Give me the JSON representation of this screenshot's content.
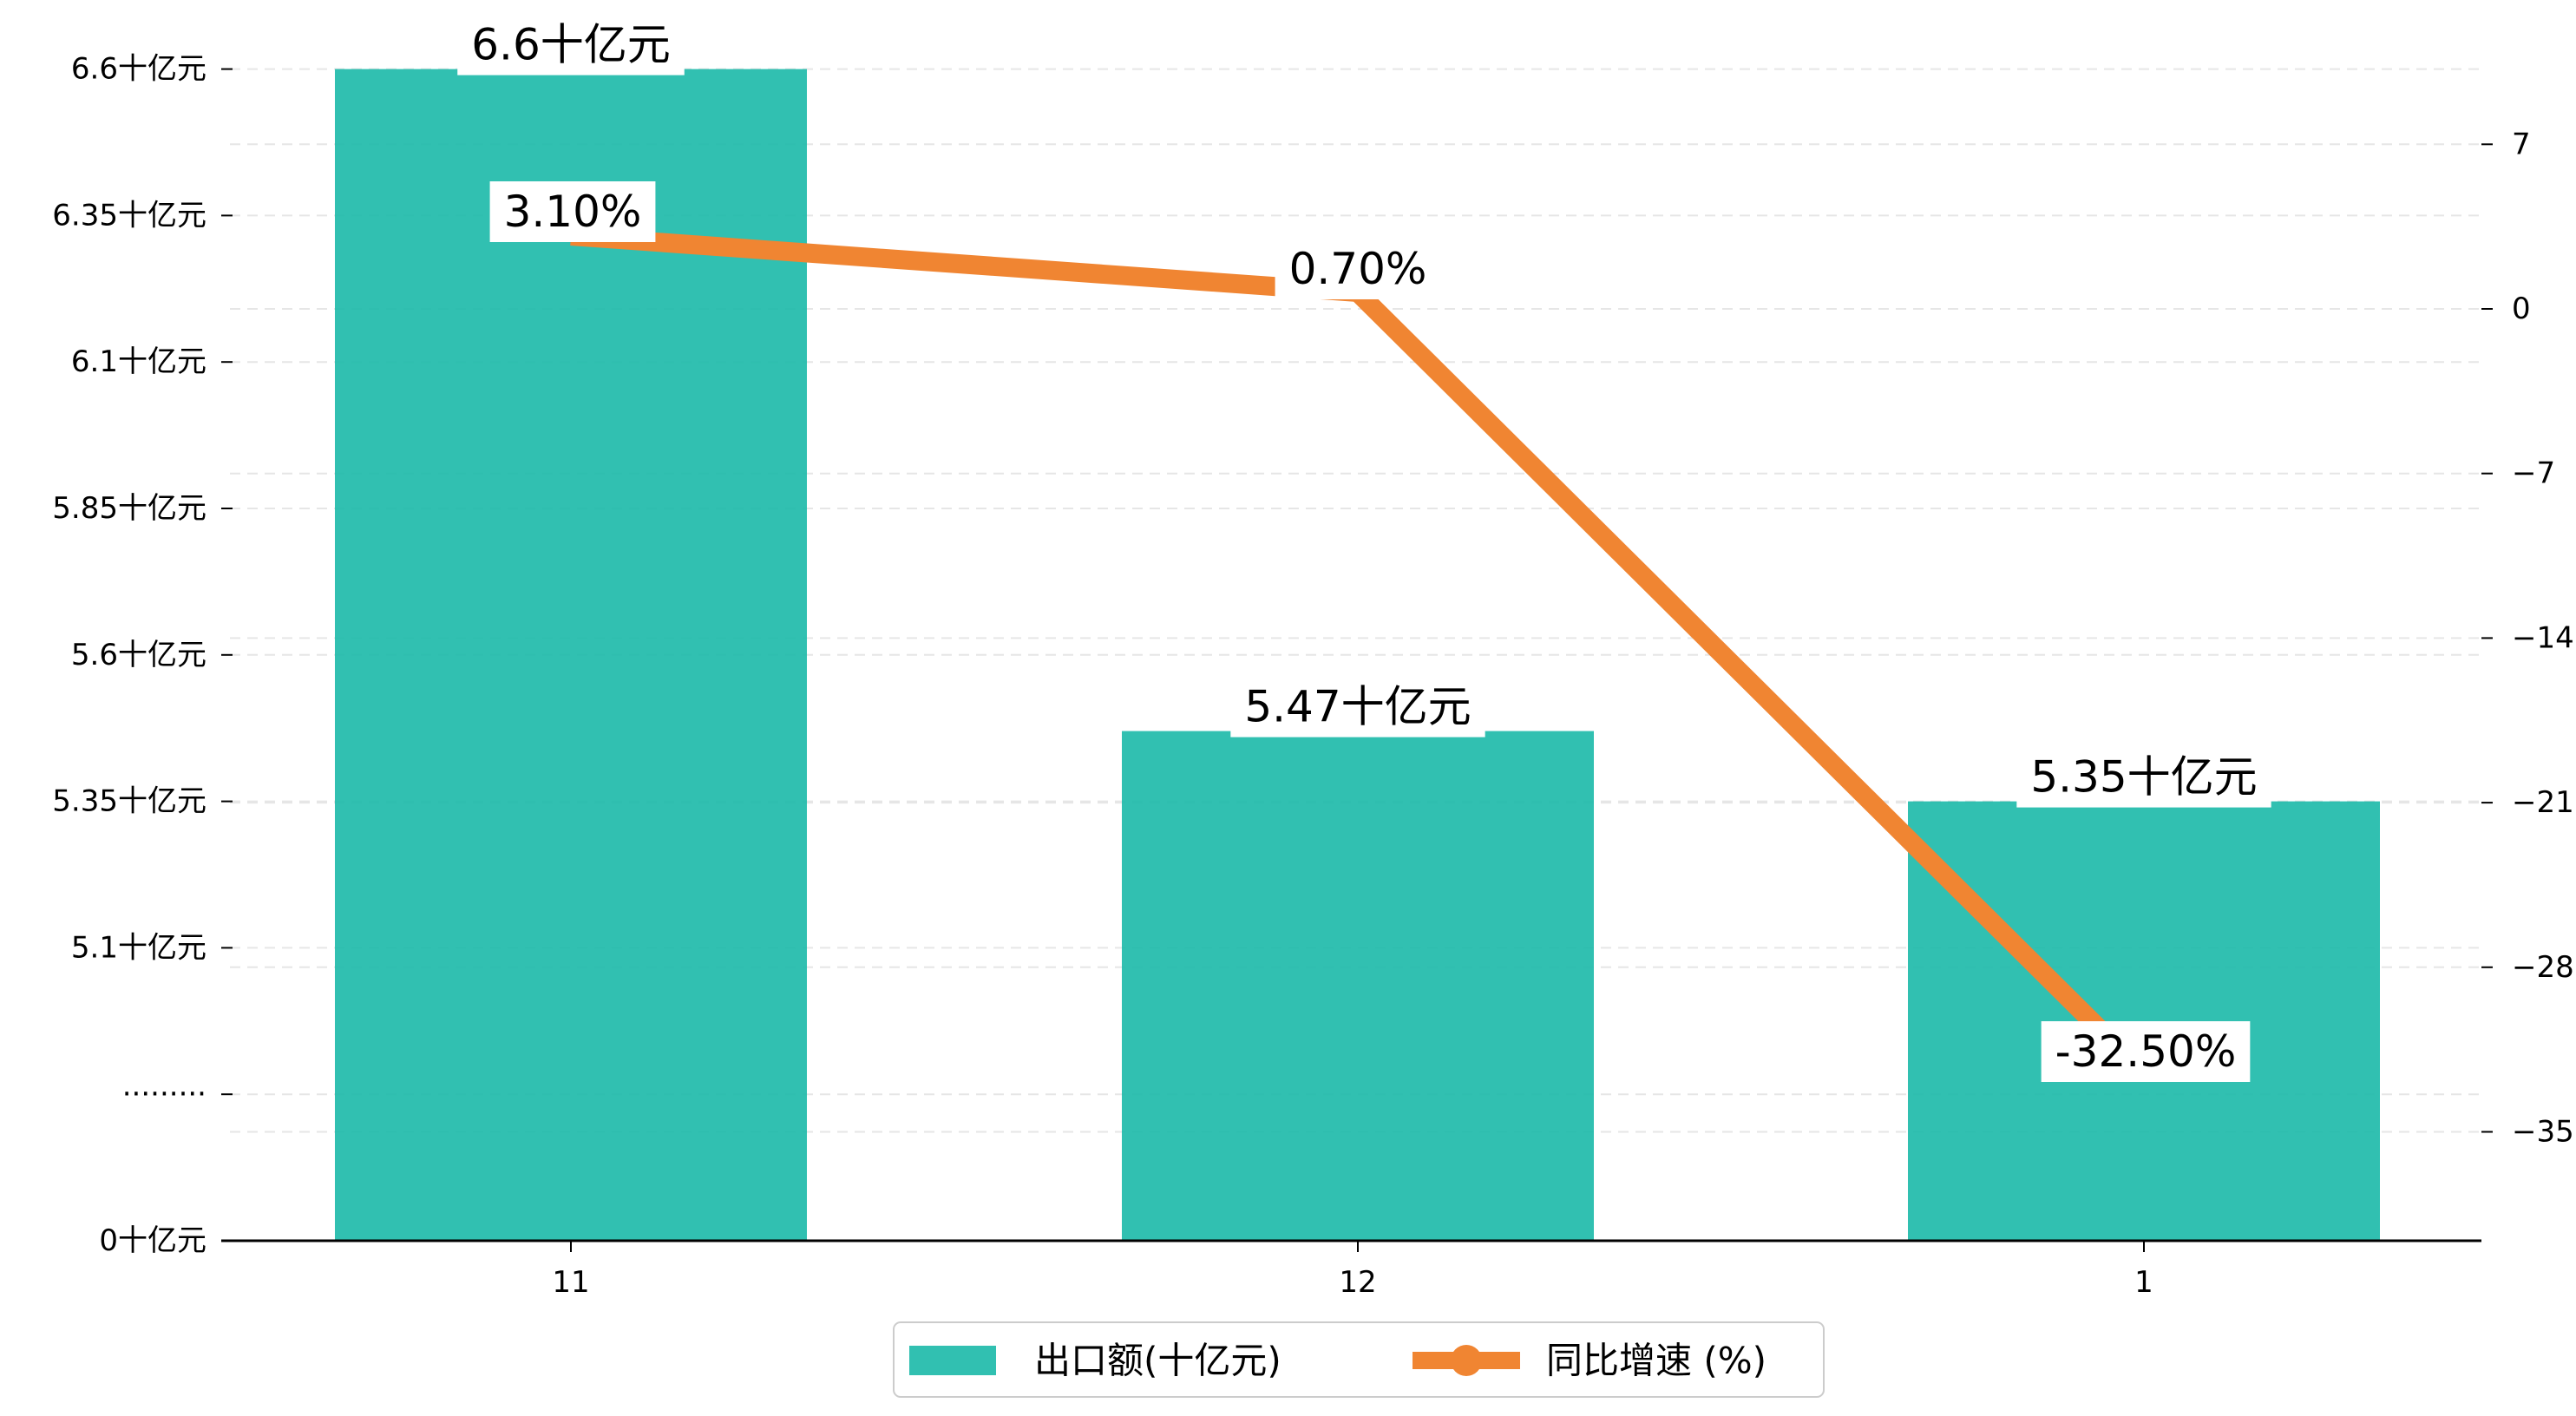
{
  "chart_data": {
    "type": "bar",
    "categories": [
      "11",
      "12",
      "1"
    ],
    "series": [
      {
        "name": "出口额(十亿元)",
        "type": "bar",
        "axis": "left",
        "values": [
          6.6,
          5.47,
          5.35
        ],
        "labels": [
          "6.6十亿元",
          "5.47十亿元",
          "5.35十亿元"
        ],
        "color": "#20BBAA"
      },
      {
        "name": "同比增速 (%)",
        "type": "line",
        "axis": "right",
        "values": [
          3.1,
          0.7,
          -32.5
        ],
        "labels": [
          "3.10%",
          "0.70%",
          "-32.50%"
        ],
        "color": "#F08532"
      }
    ],
    "left_axis": {
      "broken": true,
      "break_label": "·········",
      "ticks": [
        {
          "value": 0,
          "label": "0十亿元"
        },
        {
          "value": 5.1,
          "label": "5.1十亿元"
        },
        {
          "value": 5.35,
          "label": "5.35十亿元"
        },
        {
          "value": 5.6,
          "label": "5.6十亿元"
        },
        {
          "value": 5.85,
          "label": "5.85十亿元"
        },
        {
          "value": 6.1,
          "label": "6.1十亿元"
        },
        {
          "value": 6.35,
          "label": "6.35十亿元"
        },
        {
          "value": 6.6,
          "label": "6.6十亿元"
        }
      ]
    },
    "right_axis": {
      "ylim": [
        -39.9,
        12.9
      ],
      "ticks": [
        7,
        0,
        -7,
        -14,
        -21,
        -28,
        -35
      ],
      "tick_labels": [
        "7",
        "0",
        "−7",
        "−14",
        "−21",
        "−28",
        "−35"
      ]
    },
    "grid": true,
    "legend": {
      "position": "bottom-center"
    }
  }
}
